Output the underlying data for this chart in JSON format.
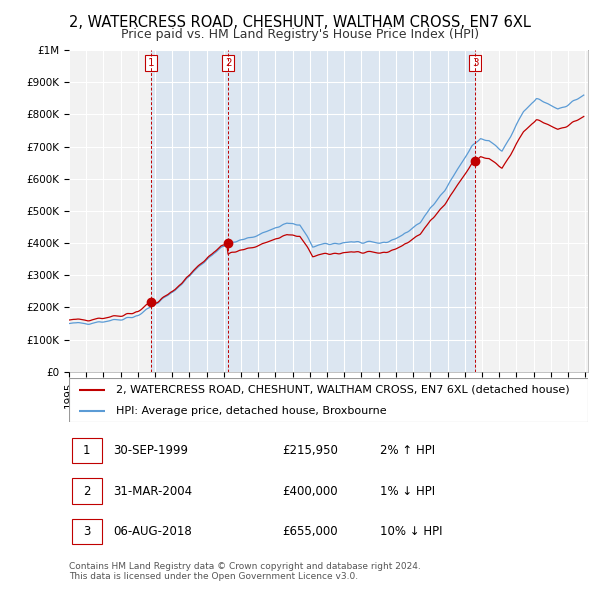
{
  "title": "2, WATERCRESS ROAD, CHESHUNT, WALTHAM CROSS, EN7 6XL",
  "subtitle": "Price paid vs. HM Land Registry's House Price Index (HPI)",
  "sales": [
    {
      "date": "1999-09-30",
      "price": 215950,
      "label": "1"
    },
    {
      "date": "2004-03-31",
      "price": 400000,
      "label": "2"
    },
    {
      "date": "2018-08-06",
      "price": 655000,
      "label": "3"
    }
  ],
  "legend_house_label": "2, WATERCRESS ROAD, CHESHUNT, WALTHAM CROSS, EN7 6XL (detached house)",
  "legend_hpi_label": "HPI: Average price, detached house, Broxbourne",
  "footnote1": "Contains HM Land Registry data © Crown copyright and database right 2024.",
  "footnote2": "This data is licensed under the Open Government Licence v3.0.",
  "table_rows": [
    {
      "num": "1",
      "date": "30-SEP-1999",
      "price": "£215,950",
      "change": "2% ↑ HPI"
    },
    {
      "num": "2",
      "date": "31-MAR-2004",
      "price": "£400,000",
      "change": "1% ↓ HPI"
    },
    {
      "num": "3",
      "date": "06-AUG-2018",
      "price": "£655,000",
      "change": "10% ↓ HPI"
    }
  ],
  "ylim": [
    0,
    1000000
  ],
  "yticks": [
    0,
    100000,
    200000,
    300000,
    400000,
    500000,
    600000,
    700000,
    800000,
    900000,
    1000000
  ],
  "ytick_labels": [
    "£0",
    "£100K",
    "£200K",
    "£300K",
    "£400K",
    "£500K",
    "£600K",
    "£700K",
    "£800K",
    "£900K",
    "£1M"
  ],
  "hpi_line_color": "#5b9bd5",
  "sale_line_color": "#c00000",
  "sale_dot_color": "#c00000",
  "vline_color": "#c00000",
  "shade_color": "#dce6f1",
  "plot_bg_color": "#f2f2f2",
  "grid_color": "#ffffff",
  "title_fontsize": 10.5,
  "subtitle_fontsize": 9.0,
  "tick_fontsize": 7.5,
  "legend_fontsize": 8.0,
  "table_fontsize": 8.5,
  "footnote_fontsize": 6.5
}
